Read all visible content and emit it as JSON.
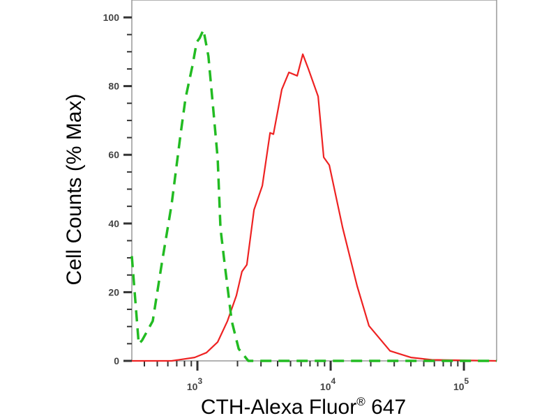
{
  "chart_data": {
    "type": "line",
    "title": "",
    "xlabel": "CTH-Alexa Fluor® 647",
    "xlabel_main": "CTH-Alexa Fluor",
    "xlabel_mark": "®",
    "xlabel_suffix": " 647",
    "ylabel": "Cell Counts (% Max)",
    "x_scale": "log",
    "xlim": [
      322,
      176000
    ],
    "ylim": [
      0,
      100
    ],
    "x_ticks": [
      {
        "value": 1000,
        "base": "10",
        "exp": "3"
      },
      {
        "value": 10000,
        "base": "10",
        "exp": "4"
      },
      {
        "value": 100000,
        "base": "10",
        "exp": "5"
      }
    ],
    "y_ticks": [
      0,
      20,
      40,
      60,
      80,
      100
    ],
    "y_tick_labels": [
      "0",
      "20",
      "40",
      "60",
      "80",
      "100"
    ],
    "grid": false,
    "legend": "none",
    "series": [
      {
        "color": "#ee2222",
        "style": "solid",
        "x": [
          322,
          640,
          953,
          1170,
          1420,
          1680,
          1960,
          2160,
          2350,
          2660,
          3070,
          3510,
          3720,
          4300,
          4860,
          5610,
          6180,
          6800,
          8050,
          8870,
          9770,
          12300,
          15800,
          19400,
          27900,
          40000,
          57400,
          176000
        ],
        "y": [
          0,
          0,
          1,
          2.4,
          5.5,
          11.6,
          19,
          26,
          28,
          44,
          51,
          66.4,
          66,
          79,
          84,
          83,
          89.3,
          85,
          77,
          59.3,
          57,
          38.8,
          21.8,
          10.2,
          2.9,
          1,
          0.3,
          0
        ]
      },
      {
        "color": "#22bb22",
        "style": "dashed",
        "x": [
          322,
          363,
          385,
          462,
          541,
          640,
          748,
          815,
          919,
          988,
          1040,
          1110,
          1210,
          1320,
          1420,
          1490,
          1600,
          1810,
          2040,
          2410,
          176000
        ],
        "y": [
          30.5,
          4.9,
          6,
          11.6,
          28.4,
          45.5,
          66,
          76.5,
          86,
          92.8,
          94,
          96.4,
          88.7,
          72.5,
          58.9,
          38.6,
          28.4,
          11.6,
          3.5,
          0,
          0
        ]
      }
    ]
  }
}
